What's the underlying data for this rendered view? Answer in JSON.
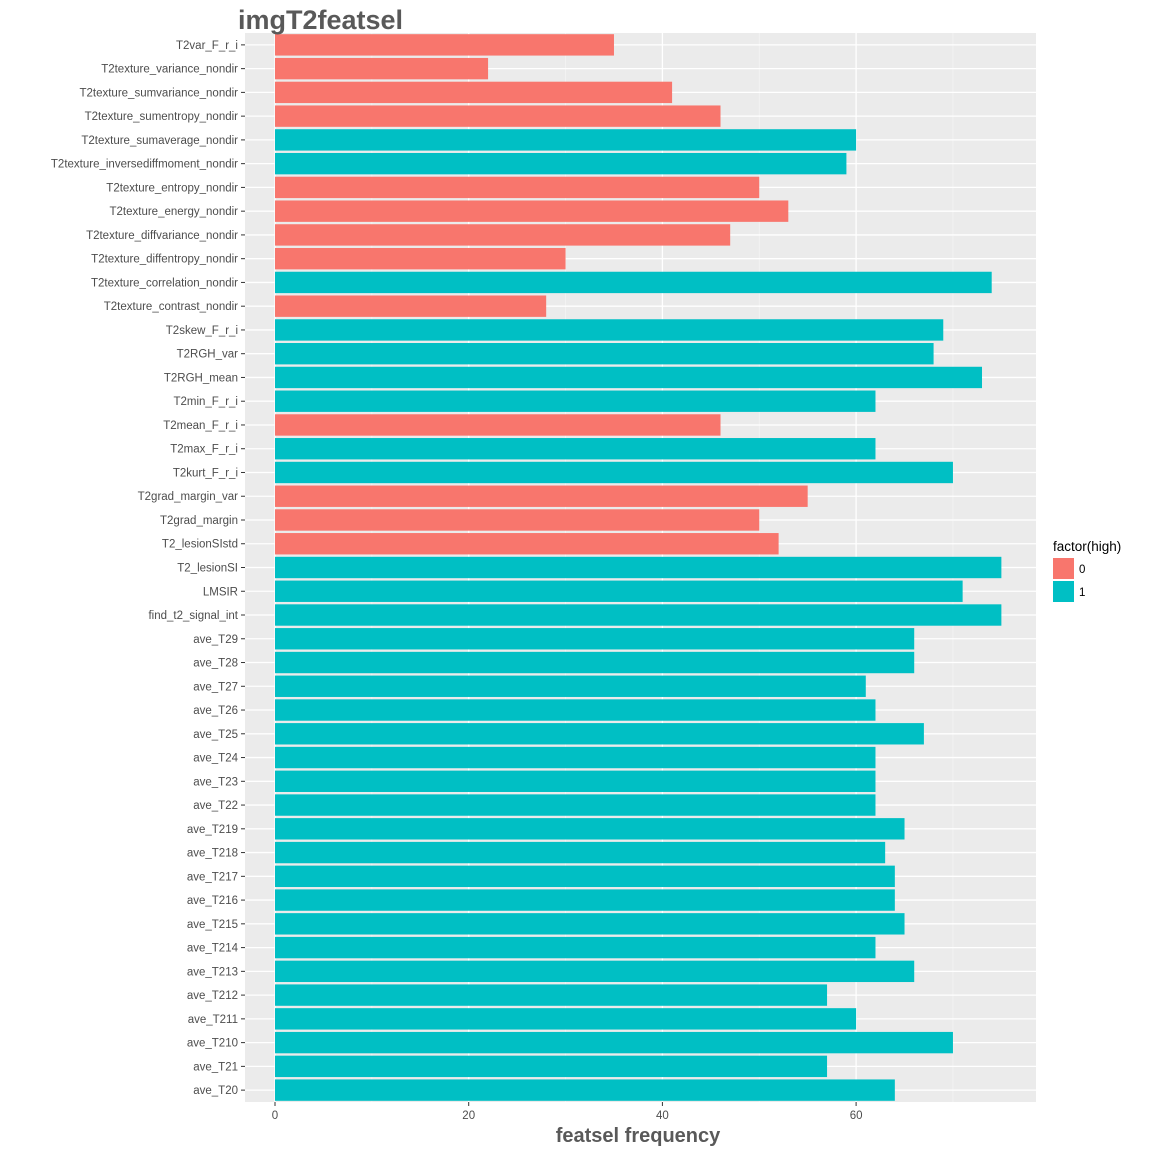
{
  "chart_data": {
    "type": "bar",
    "orientation": "horizontal",
    "title": "imgT2featsel",
    "xlabel": "featsel frequency",
    "ylabel": "",
    "xlim": [
      0,
      78
    ],
    "x_ticks": [
      0,
      20,
      40,
      60
    ],
    "grid": true,
    "legend": {
      "title": "factor(high)",
      "placement": "right",
      "entries": [
        {
          "label": "0",
          "color": "#F8766D"
        },
        {
          "label": "1",
          "color": "#00BFC4"
        }
      ]
    },
    "colors": {
      "0": "#F8766D",
      "1": "#00BFC4"
    },
    "panel_background": "#EBEBEB",
    "categories": [
      "T2var_F_r_i",
      "T2texture_variance_nondir",
      "T2texture_sumvariance_nondir",
      "T2texture_sumentropy_nondir",
      "T2texture_sumaverage_nondir",
      "T2texture_inversediffmoment_nondir",
      "T2texture_entropy_nondir",
      "T2texture_energy_nondir",
      "T2texture_diffvariance_nondir",
      "T2texture_diffentropy_nondir",
      "T2texture_correlation_nondir",
      "T2texture_contrast_nondir",
      "T2skew_F_r_i",
      "T2RGH_var",
      "T2RGH_mean",
      "T2min_F_r_i",
      "T2mean_F_r_i",
      "T2max_F_r_i",
      "T2kurt_F_r_i",
      "T2grad_margin_var",
      "T2grad_margin",
      "T2_lesionSIstd",
      "T2_lesionSI",
      "LMSIR",
      "find_t2_signal_int",
      "ave_T29",
      "ave_T28",
      "ave_T27",
      "ave_T26",
      "ave_T25",
      "ave_T24",
      "ave_T23",
      "ave_T22",
      "ave_T219",
      "ave_T218",
      "ave_T217",
      "ave_T216",
      "ave_T215",
      "ave_T214",
      "ave_T213",
      "ave_T212",
      "ave_T211",
      "ave_T210",
      "ave_T21",
      "ave_T20"
    ],
    "values": [
      35,
      22,
      41,
      46,
      60,
      59,
      50,
      53,
      47,
      30,
      74,
      28,
      69,
      68,
      73,
      62,
      46,
      62,
      70,
      55,
      50,
      52,
      75,
      71,
      75,
      66,
      66,
      61,
      62,
      67,
      62,
      62,
      62,
      65,
      63,
      64,
      64,
      65,
      62,
      66,
      57,
      60,
      70,
      57,
      64
    ],
    "groups": [
      "0",
      "0",
      "0",
      "0",
      "1",
      "1",
      "0",
      "0",
      "0",
      "0",
      "1",
      "0",
      "1",
      "1",
      "1",
      "1",
      "0",
      "1",
      "1",
      "0",
      "0",
      "0",
      "1",
      "1",
      "1",
      "1",
      "1",
      "1",
      "1",
      "1",
      "1",
      "1",
      "1",
      "1",
      "1",
      "1",
      "1",
      "1",
      "1",
      "1",
      "1",
      "1",
      "1",
      "1",
      "1"
    ]
  }
}
